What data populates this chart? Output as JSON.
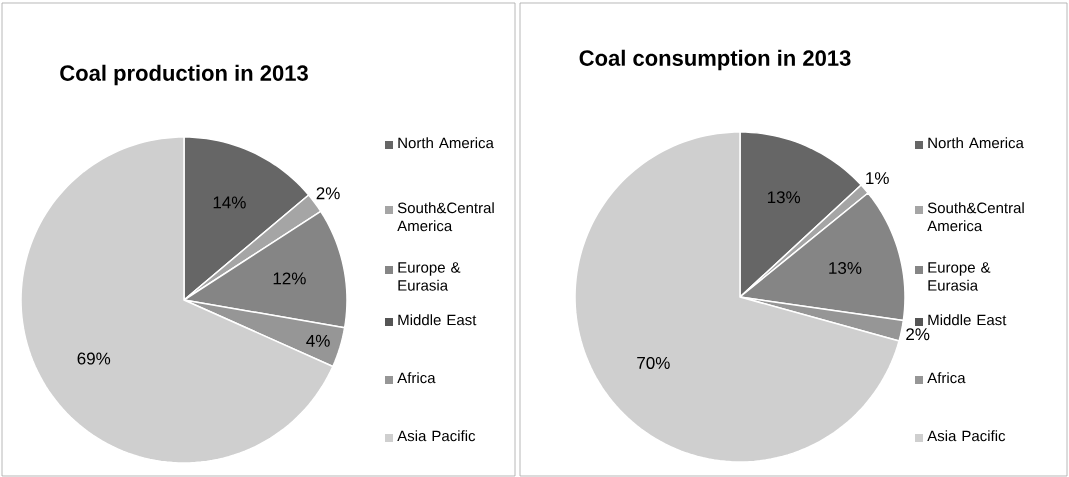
{
  "chart_data": [
    {
      "type": "pie",
      "title": "Coal production in 2013",
      "categories": [
        "North America",
        "South&Central America",
        "Europe & Eurasia",
        "Middle East",
        "Africa",
        "Asia Pacific"
      ],
      "values": [
        14,
        2,
        12,
        0,
        4,
        69
      ],
      "value_labels": [
        "14%",
        "2%",
        "12%",
        null,
        "4%",
        "69%"
      ],
      "colors": [
        "#666666",
        "#a5a5a5",
        "#858585",
        "#555555",
        "#969696",
        "#cfcfcf"
      ],
      "legend": "right"
    },
    {
      "type": "pie",
      "title": "Coal consumption in 2013",
      "categories": [
        "North America",
        "South&Central America",
        "Europe & Eurasia",
        "Middle East",
        "Africa",
        "Asia Pacific"
      ],
      "values": [
        13,
        1,
        13,
        0,
        2,
        70
      ],
      "value_labels": [
        "13%",
        "1%",
        "13%",
        null,
        "2%",
        "70%"
      ],
      "colors": [
        "#666666",
        "#a5a5a5",
        "#858585",
        "#555555",
        "#969696",
        "#cfcfcf"
      ],
      "legend": "right"
    }
  ]
}
